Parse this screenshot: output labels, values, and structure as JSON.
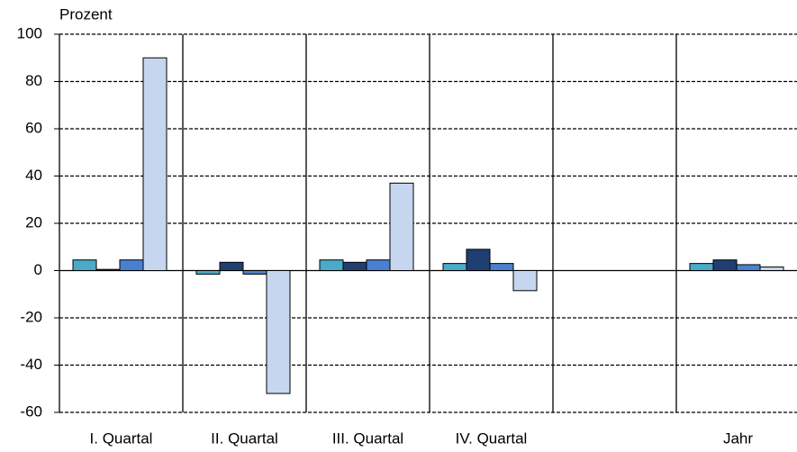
{
  "chart_data": {
    "type": "bar",
    "y_label": "Prozent",
    "categories": [
      "I. Quartal",
      "II. Quartal",
      "III. Quartal",
      "IV. Quartal",
      null,
      "Jahr"
    ],
    "series": [
      {
        "color": "#4aaac8",
        "values": [
          4.5,
          -1.5,
          4.5,
          3,
          null,
          3
        ]
      },
      {
        "color": "#1f3f73",
        "values": [
          0.5,
          3.5,
          3.5,
          9,
          null,
          4.5
        ]
      },
      {
        "color": "#4a80d0",
        "values": [
          4.5,
          -1.5,
          4.5,
          3,
          null,
          2.5
        ]
      },
      {
        "color": "#c6d6ef",
        "values": [
          90,
          -52,
          37,
          -8.5,
          null,
          1.5
        ]
      }
    ],
    "ylim": [
      -60,
      100
    ],
    "yticks": [
      -60,
      -40,
      -20,
      0,
      20,
      40,
      60,
      80,
      100
    ],
    "grid": true
  }
}
